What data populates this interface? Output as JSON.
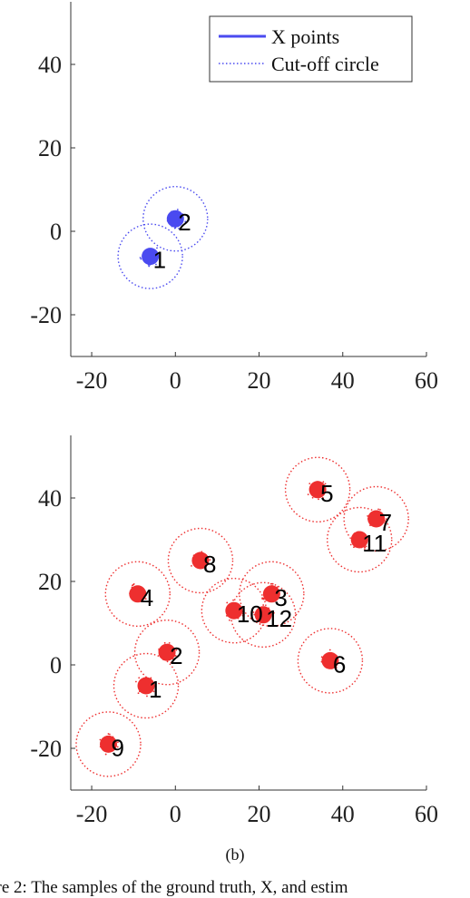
{
  "chart_data": [
    {
      "type": "scatter",
      "title": "",
      "xlabel": "",
      "ylabel": "",
      "xlim": [
        -25,
        60
      ],
      "ylim": [
        -30,
        55
      ],
      "xticks": [
        -20,
        0,
        20,
        40,
        60
      ],
      "yticks": [
        -20,
        0,
        20,
        40
      ],
      "xtick_labels": [
        "-20",
        "0",
        "20",
        "40",
        "60"
      ],
      "ytick_labels": [
        "-20",
        "0",
        "20",
        "40"
      ],
      "color": "#4a4af0",
      "cutoff_radius": 7.7,
      "legend": {
        "placement": "top-right",
        "entries": [
          {
            "label": "X points",
            "style": "solid",
            "color": "#4a4af0"
          },
          {
            "label": "Cut-off circle",
            "style": "dotted",
            "color": "#4a4af0"
          }
        ]
      },
      "clusters": [
        {
          "label": "1",
          "x": -6,
          "y": -6
        },
        {
          "label": "2",
          "x": 0,
          "y": 3
        }
      ]
    },
    {
      "type": "scatter",
      "title": "",
      "xlabel": "",
      "ylabel": "",
      "xlim": [
        -25,
        60
      ],
      "ylim": [
        -30,
        55
      ],
      "xticks": [
        -20,
        0,
        20,
        40,
        60
      ],
      "yticks": [
        -20,
        0,
        20,
        40
      ],
      "xtick_labels": [
        "-20",
        "0",
        "20",
        "40",
        "60"
      ],
      "ytick_labels": [
        "-20",
        "0",
        "20",
        "40"
      ],
      "color": "#ee2f2f",
      "cutoff_radius": 7.7,
      "clusters": [
        {
          "label": "1",
          "x": -7,
          "y": -5
        },
        {
          "label": "2",
          "x": -2,
          "y": 3
        },
        {
          "label": "3",
          "x": 23,
          "y": 17
        },
        {
          "label": "4",
          "x": -9,
          "y": 17
        },
        {
          "label": "5",
          "x": 34,
          "y": 42
        },
        {
          "label": "6",
          "x": 37,
          "y": 1
        },
        {
          "label": "7",
          "x": 48,
          "y": 35
        },
        {
          "label": "8",
          "x": 6,
          "y": 25
        },
        {
          "label": "9",
          "x": -16,
          "y": -19
        },
        {
          "label": "10",
          "x": 14,
          "y": 13
        },
        {
          "label": "11",
          "x": 44,
          "y": 30
        },
        {
          "label": "12",
          "x": 21,
          "y": 12
        }
      ]
    }
  ],
  "caption": "(b)",
  "figure_text": "ure 2: The samples of the ground truth, X, and estim"
}
